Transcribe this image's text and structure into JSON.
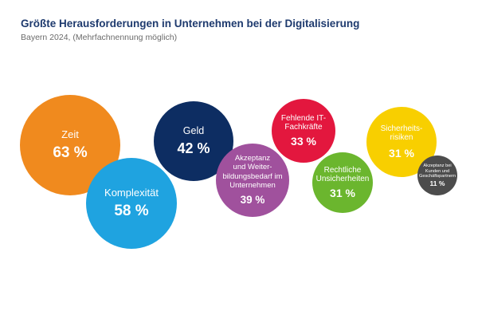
{
  "header": {
    "title": "Größte Herausforderungen in Unternehmen bei der Digitalisierung",
    "subtitle": "Bayern 2024, (Mehrfachnennung möglich)"
  },
  "chart_data": {
    "type": "bubble",
    "title": "Größte Herausforderungen in Unternehmen bei der Digitalisierung",
    "subtitle": "Bayern 2024, (Mehrfachnennung möglich)",
    "unit": "%",
    "items": [
      {
        "label": "Zeit",
        "value": 63,
        "value_label": "63 %",
        "color": "#f08a1e"
      },
      {
        "label": "Komplexität",
        "value": 58,
        "value_label": "58 %",
        "color": "#1fa3e0"
      },
      {
        "label": "Geld",
        "value": 42,
        "value_label": "42 %",
        "color": "#0d2d62"
      },
      {
        "label": "Akzeptanz\nund Weiter-\nbildungsbedarf im\nUnternehmen",
        "value": 39,
        "value_label": "39 %",
        "color": "#a0519d"
      },
      {
        "label": "Fehlende IT-\nFachkräfte",
        "value": 33,
        "value_label": "33 %",
        "color": "#e3173e"
      },
      {
        "label": "Rechtliche\nUnsicherheiten",
        "value": 31,
        "value_label": "31 %",
        "color": "#6bb62e"
      },
      {
        "label": "Sicherheits-\nrisiken",
        "value": 31,
        "value_label": "31 %",
        "color": "#f8cf00"
      },
      {
        "label": "Akzeptanz bei\nKunden und\nGeschäftspartnern",
        "value": 11,
        "value_label": "11 %",
        "color": "#4c4c4c"
      }
    ]
  }
}
